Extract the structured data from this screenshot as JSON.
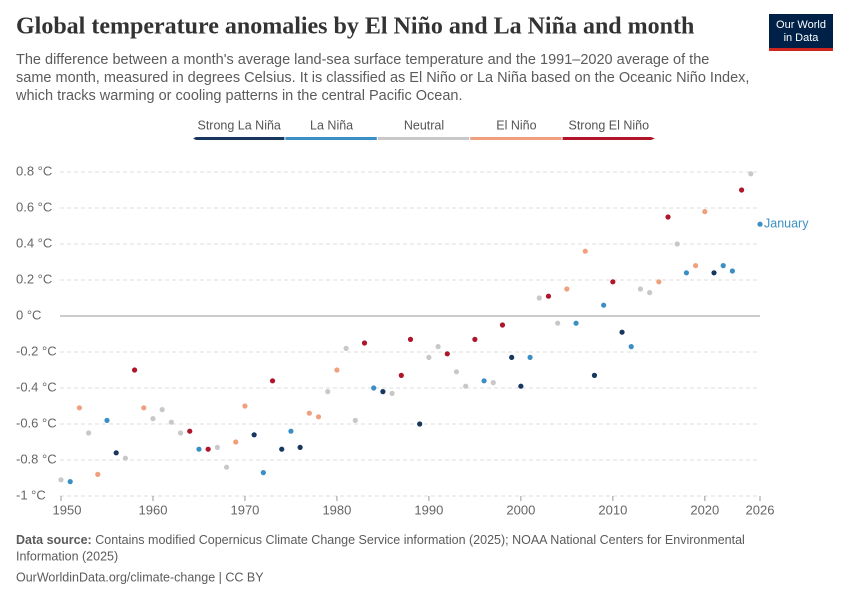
{
  "chart_data": {
    "type": "scatter",
    "title": "Global temperature anomalies by El Niño and La Niña and month",
    "subtitle": [
      "The difference between a month's average land-sea surface temperature and the 1991–2020 average of the",
      "same month, measured in degrees Celsius. It is classified as El Niño or La Niña based on the Oceanic Niño Index,",
      "which tracks warming or cooling patterns in the central Pacific Ocean."
    ],
    "logo": [
      "Our World",
      "in Data"
    ],
    "end_label": "January",
    "xlim": [
      1950,
      2026
    ],
    "xticks": [
      1950,
      1960,
      1970,
      1980,
      1990,
      2000,
      2010,
      2020,
      2026
    ],
    "ylim": [
      -1,
      0.8
    ],
    "yticks": [
      {
        "value": -1,
        "label": "-1 °C"
      },
      {
        "value": -0.8,
        "label": "-0.8 °C"
      },
      {
        "value": -0.6,
        "label": "-0.6 °C"
      },
      {
        "value": -0.4,
        "label": "-0.4 °C"
      },
      {
        "value": -0.2,
        "label": "-0.2 °C"
      },
      {
        "value": 0,
        "label": "0 °C"
      },
      {
        "value": 0.2,
        "label": "0.2 °C"
      },
      {
        "value": 0.4,
        "label": "0.4 °C"
      },
      {
        "value": 0.6,
        "label": "0.6 °C"
      },
      {
        "value": 0.8,
        "label": "0.8 °C"
      }
    ],
    "grid": true,
    "series": [
      {
        "name": "Strong La Niña",
        "color": "#17375e",
        "x": [
          1956,
          1971,
          1974,
          1976,
          1985,
          1989,
          1999,
          2000,
          2008,
          2011,
          2021
        ],
        "values": [
          -0.76,
          -0.66,
          -0.74,
          -0.73,
          -0.42,
          -0.6,
          -0.23,
          -0.39,
          -0.33,
          -0.09,
          0.24
        ]
      },
      {
        "name": "La Niña",
        "color": "#3b8fc4",
        "x": [
          1951,
          1955,
          1965,
          1972,
          1975,
          1984,
          1996,
          2001,
          2006,
          2009,
          2012,
          2018,
          2022,
          2023,
          2026
        ],
        "values": [
          -0.92,
          -0.58,
          -0.74,
          -0.87,
          -0.64,
          -0.4,
          -0.36,
          -0.23,
          -0.04,
          0.06,
          -0.17,
          0.24,
          0.28,
          0.25,
          0.51
        ]
      },
      {
        "name": "Neutral",
        "color": "#c8c8c8",
        "x": [
          1950,
          1953,
          1957,
          1960,
          1961,
          1962,
          1963,
          1967,
          1968,
          1979,
          1981,
          1982,
          1986,
          1990,
          1991,
          1993,
          1994,
          1997,
          2002,
          2004,
          2013,
          2014,
          2017,
          2025
        ],
        "values": [
          -0.91,
          -0.65,
          -0.79,
          -0.57,
          -0.52,
          -0.59,
          -0.65,
          -0.73,
          -0.84,
          -0.42,
          -0.18,
          -0.58,
          -0.43,
          -0.23,
          -0.17,
          -0.31,
          -0.39,
          -0.37,
          0.1,
          -0.04,
          0.15,
          0.13,
          0.4,
          0.79
        ]
      },
      {
        "name": "El Niño",
        "color": "#f0a07c",
        "x": [
          1952,
          1954,
          1959,
          1969,
          1970,
          1977,
          1978,
          1980,
          2005,
          2007,
          2015,
          2019,
          2020
        ],
        "values": [
          -0.51,
          -0.88,
          -0.51,
          -0.7,
          -0.5,
          -0.54,
          -0.56,
          -0.3,
          0.15,
          0.36,
          0.19,
          0.28,
          0.58
        ]
      },
      {
        "name": "Strong El Niño",
        "color": "#b0152a",
        "x": [
          1958,
          1964,
          1966,
          1973,
          1983,
          1987,
          1988,
          1992,
          1995,
          1998,
          2003,
          2010,
          2016,
          2024
        ],
        "values": [
          -0.3,
          -0.64,
          -0.74,
          -0.36,
          -0.15,
          -0.33,
          -0.13,
          -0.21,
          -0.13,
          -0.05,
          0.11,
          0.19,
          0.55,
          0.7
        ]
      }
    ],
    "source_label": "Data source:",
    "source": [
      "Contains modified Copernicus Climate Change Service information (2025); NOAA National Centers for Environmental",
      "Information (2025)"
    ],
    "footer": "OurWorldinData.org/climate-change | CC BY"
  }
}
